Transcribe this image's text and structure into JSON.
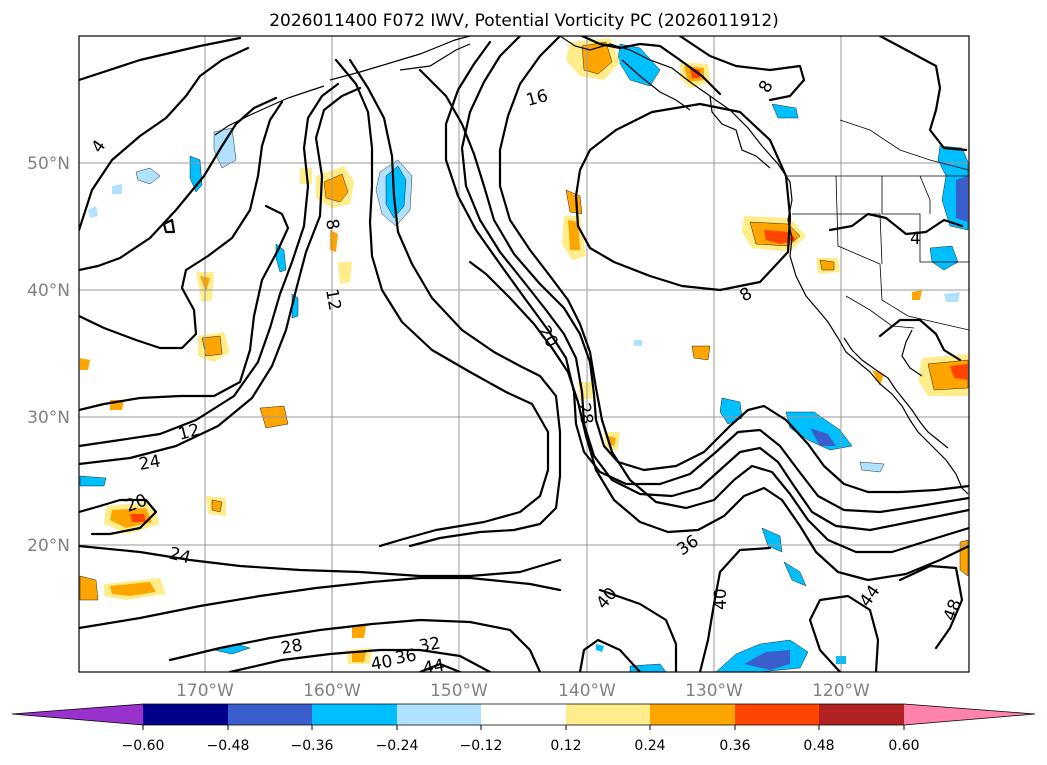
{
  "title": "2026011400 F072 IWV, Potential Vorticity PC (2026011912)",
  "lat_labels": [
    "50°N",
    "40°N",
    "30°N",
    "20°N"
  ],
  "lon_labels": [
    "170°W",
    "160°W",
    "150°W",
    "140°W",
    "130°W",
    "120°W"
  ],
  "contour_labels": [
    "4",
    "4",
    "8",
    "8",
    "8",
    "12",
    "12",
    "16",
    "20",
    "20",
    "24",
    "24",
    "28",
    "28",
    "32",
    "36",
    "36",
    "40",
    "40",
    "40",
    "44",
    "44",
    "48"
  ],
  "colorbar": {
    "ticks": [
      "−0.60",
      "−0.48",
      "−0.36",
      "−0.24",
      "−0.12",
      "0.12",
      "0.24",
      "0.36",
      "0.48",
      "0.60"
    ],
    "colors": [
      "#9932cc",
      "#00008b",
      "#3a5fcd",
      "#00bfff",
      "#b0e2ff",
      "#ffffff",
      "#ffec8b",
      "#ffa500",
      "#ff4500",
      "#b22222",
      "#ff83aa"
    ]
  }
}
